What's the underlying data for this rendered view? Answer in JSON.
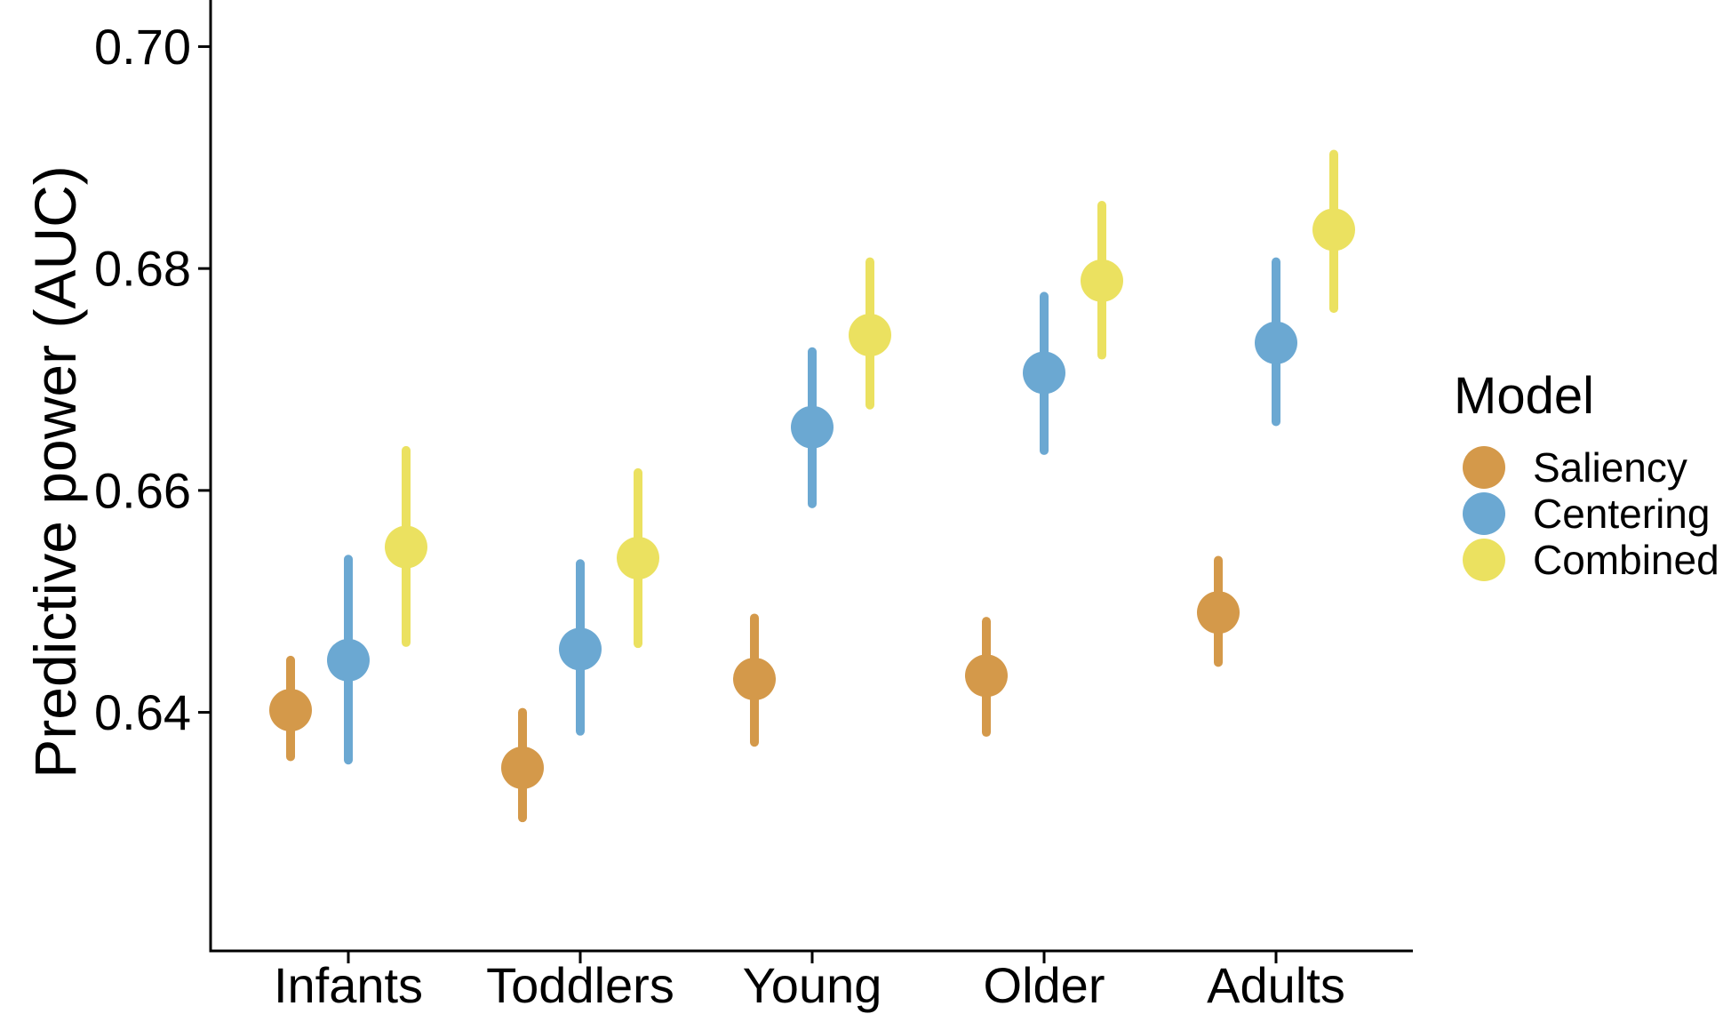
{
  "chart_data": {
    "type": "scatter",
    "title": "",
    "xlabel": "",
    "ylabel": "Predictive power (AUC)",
    "categories": [
      "Infants",
      "Toddlers",
      "Young",
      "Older",
      "Adults"
    ],
    "yticks": [
      "0.64",
      "0.66",
      "0.68",
      "0.70"
    ],
    "ylim": [
      0.6185,
      0.7042
    ],
    "grid": false,
    "legend": {
      "title": "Model",
      "position": "right"
    },
    "series": [
      {
        "name": "Saliency",
        "color": "#D4994A",
        "values": [
          0.6402,
          0.635,
          0.643,
          0.6433,
          0.649
        ],
        "lower": [
          0.636,
          0.6305,
          0.6373,
          0.6382,
          0.6445
        ],
        "upper": [
          0.6447,
          0.64,
          0.6485,
          0.6482,
          0.6537
        ]
      },
      {
        "name": "Centering",
        "color": "#6BA8D2",
        "values": [
          0.6447,
          0.6457,
          0.6657,
          0.6706,
          0.6733
        ],
        "lower": [
          0.6357,
          0.6383,
          0.6588,
          0.6636,
          0.6662
        ],
        "upper": [
          0.6538,
          0.6534,
          0.6725,
          0.6775,
          0.6806
        ]
      },
      {
        "name": "Combined",
        "color": "#EBE160",
        "values": [
          0.6549,
          0.6539,
          0.674,
          0.6789,
          0.6835
        ],
        "lower": [
          0.6463,
          0.6462,
          0.6677,
          0.6722,
          0.6764
        ],
        "upper": [
          0.6636,
          0.6616,
          0.6806,
          0.6857,
          0.6903
        ]
      }
    ]
  }
}
